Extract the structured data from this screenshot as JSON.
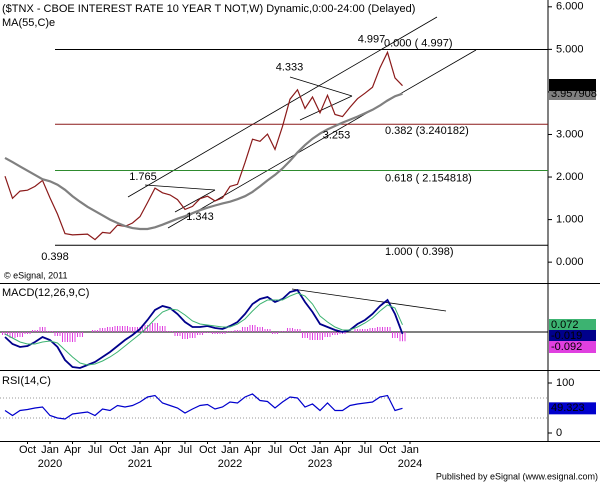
{
  "chart_data": [
    {
      "type": "line",
      "title": "($TNX - CBOE INTEREST RATE 10 YEAR T NOT,W) Dynamic,0:00-24:00 (Delayed)",
      "copyright": "© eSignal, 2011",
      "x": [
        "2019-07",
        "2019-08",
        "2019-09",
        "2019-10",
        "2019-11",
        "2019-12",
        "2020-01",
        "2020-02",
        "2020-03",
        "2020-04",
        "2020-05",
        "2020-06",
        "2020-07",
        "2020-08",
        "2020-09",
        "2020-10",
        "2020-11",
        "2020-12",
        "2021-01",
        "2021-02",
        "2021-03",
        "2021-04",
        "2021-05",
        "2021-06",
        "2021-07",
        "2021-08",
        "2021-09",
        "2021-10",
        "2021-11",
        "2021-12",
        "2022-01",
        "2022-02",
        "2022-03",
        "2022-04",
        "2022-05",
        "2022-06",
        "2022-07",
        "2022-08",
        "2022-09",
        "2022-10",
        "2022-11",
        "2022-12",
        "2023-01",
        "2023-02",
        "2023-03",
        "2023-04",
        "2023-05",
        "2023-06",
        "2023-07",
        "2023-08",
        "2023-09",
        "2023-10",
        "2023-11",
        "2023-12"
      ],
      "series": [
        {
          "color": "#8b1a1a",
          "values": [
            2.02,
            1.5,
            1.67,
            1.69,
            1.78,
            1.92,
            1.51,
            1.13,
            0.67,
            0.64,
            0.65,
            0.66,
            0.53,
            0.7,
            0.68,
            0.87,
            0.84,
            0.92,
            1.07,
            1.4,
            1.74,
            1.63,
            1.58,
            1.47,
            1.24,
            1.31,
            1.49,
            1.55,
            1.44,
            1.51,
            1.78,
            1.83,
            2.34,
            2.89,
            2.84,
            3.01,
            2.65,
            3.19,
            3.83,
            4.05,
            3.61,
            3.88,
            3.51,
            3.92,
            3.47,
            3.42,
            3.64,
            3.84,
            3.97,
            4.11,
            4.57,
            4.93,
            4.33,
            4.146
          ]
        },
        {
          "name": "MA(55,C)e",
          "color": "#808080",
          "values": [
            2.45,
            2.35,
            2.25,
            2.15,
            2.05,
            1.95,
            1.9,
            1.82,
            1.7,
            1.55,
            1.42,
            1.3,
            1.2,
            1.1,
            1.0,
            0.92,
            0.85,
            0.8,
            0.78,
            0.78,
            0.82,
            0.88,
            0.95,
            1.02,
            1.08,
            1.15,
            1.22,
            1.28,
            1.33,
            1.38,
            1.42,
            1.48,
            1.55,
            1.65,
            1.78,
            1.92,
            2.05,
            2.2,
            2.38,
            2.58,
            2.75,
            2.9,
            3.02,
            3.12,
            3.2,
            3.28,
            3.35,
            3.42,
            3.5,
            3.58,
            3.68,
            3.8,
            3.9,
            3.957908
          ]
        }
      ],
      "ylim": [
        -0.49,
        6.16
      ],
      "yticks": [
        {
          "value": 6,
          "label": "6.000"
        },
        {
          "value": 5,
          "label": "5.000"
        },
        {
          "value": 4,
          "label": "4.000"
        },
        {
          "value": 3,
          "label": "3.000"
        },
        {
          "value": 2,
          "label": "2.000"
        },
        {
          "value": 1,
          "label": "1.000"
        },
        {
          "value": 0,
          "label": "0.000"
        }
      ],
      "fib": [
        {
          "label": "0.000 ( 4.997)",
          "value": 4.997,
          "color": "#000000"
        },
        {
          "label": "0.382 (3.240182)",
          "value": 3.240182,
          "color": "#8b1a1a"
        },
        {
          "label": "0.618 ( 2.154818)",
          "value": 2.154818,
          "color": "#2e8b2e"
        },
        {
          "label": "1.000 ( 0.398)",
          "value": 0.398,
          "color": "#000000"
        }
      ],
      "annotations": [
        {
          "x": "2020-03",
          "value": 0.398
        },
        {
          "x": "2021-03",
          "value": 1.765
        },
        {
          "x": "2021-09",
          "value": 1.343
        },
        {
          "x": "2022-10",
          "value": 4.333
        },
        {
          "x": "2023-04",
          "value": 3.253
        },
        {
          "x": "2023-10",
          "value": 4.997
        }
      ]
    },
    {
      "type": "macd",
      "title": "MACD(12,26,9,C)",
      "series": [
        {
          "color": "#00008b",
          "values": [
            -0.05,
            -0.12,
            -0.15,
            -0.14,
            -0.1,
            -0.05,
            -0.08,
            -0.15,
            -0.28,
            -0.35,
            -0.36,
            -0.33,
            -0.3,
            -0.25,
            -0.2,
            -0.14,
            -0.08,
            -0.03,
            0.03,
            0.12,
            0.22,
            0.26,
            0.24,
            0.18,
            0.1,
            0.05,
            0.05,
            0.06,
            0.04,
            0.03,
            0.06,
            0.1,
            0.18,
            0.28,
            0.33,
            0.35,
            0.3,
            0.33,
            0.4,
            0.42,
            0.3,
            0.2,
            0.08,
            0.05,
            0.02,
            0.0,
            0.02,
            0.08,
            0.12,
            0.18,
            0.26,
            0.32,
            0.18,
            -0.019
          ]
        },
        {
          "color": "#3cb371",
          "values": [
            -0.02,
            -0.06,
            -0.1,
            -0.12,
            -0.12,
            -0.1,
            -0.09,
            -0.11,
            -0.18,
            -0.25,
            -0.31,
            -0.33,
            -0.32,
            -0.29,
            -0.25,
            -0.2,
            -0.14,
            -0.08,
            -0.02,
            0.05,
            0.13,
            0.2,
            0.23,
            0.22,
            0.17,
            0.11,
            0.08,
            0.07,
            0.06,
            0.05,
            0.05,
            0.08,
            0.13,
            0.21,
            0.28,
            0.32,
            0.32,
            0.32,
            0.36,
            0.39,
            0.36,
            0.28,
            0.16,
            0.1,
            0.05,
            0.02,
            0.02,
            0.05,
            0.09,
            0.14,
            0.21,
            0.27,
            0.24,
            0.072
          ]
        },
        {
          "kind": "bar",
          "color": "#e040e0",
          "values": [
            -0.03,
            -0.06,
            -0.05,
            -0.02,
            0.02,
            0.05,
            0.01,
            -0.04,
            -0.1,
            -0.1,
            -0.05,
            0.0,
            0.02,
            0.04,
            0.05,
            0.06,
            0.06,
            0.05,
            0.05,
            0.07,
            0.09,
            0.06,
            0.01,
            -0.04,
            -0.07,
            -0.06,
            -0.03,
            -0.01,
            -0.02,
            -0.02,
            0.01,
            0.02,
            0.05,
            0.07,
            0.05,
            0.03,
            -0.02,
            0.01,
            0.04,
            0.03,
            -0.06,
            -0.08,
            -0.08,
            -0.05,
            -0.03,
            -0.02,
            0.0,
            0.03,
            0.03,
            0.04,
            0.05,
            0.05,
            -0.06,
            -0.092
          ]
        }
      ],
      "ylim": [
        -0.36,
        0.46
      ]
    },
    {
      "type": "line",
      "title": "RSI(14,C)",
      "series": [
        {
          "color": "#0000cd",
          "values": [
            45,
            35,
            45,
            47,
            50,
            52,
            35,
            30,
            28,
            38,
            40,
            42,
            35,
            48,
            45,
            55,
            52,
            55,
            62,
            72,
            75,
            60,
            55,
            50,
            40,
            48,
            55,
            57,
            48,
            52,
            62,
            60,
            72,
            78,
            65,
            63,
            50,
            62,
            72,
            70,
            52,
            58,
            45,
            60,
            45,
            45,
            55,
            58,
            60,
            62,
            72,
            75,
            45,
            49.323
          ]
        }
      ],
      "ylim": [
        -14,
        122
      ],
      "yticks": [
        100,
        0
      ],
      "levels": [
        70,
        30
      ],
      "xticks": [
        {
          "value": "2019-10",
          "label": "Oct"
        },
        {
          "value": "2020-01",
          "label": "Jan"
        },
        {
          "value": "2020-04",
          "label": "Apr"
        },
        {
          "value": "2020-07",
          "label": "Jul"
        },
        {
          "value": "2020-10",
          "label": "Oct"
        },
        {
          "value": "2021-01",
          "label": "Jan"
        },
        {
          "value": "2021-04",
          "label": "Apr"
        },
        {
          "value": "2021-07",
          "label": "Jul"
        },
        {
          "value": "2021-10",
          "label": "Oct"
        },
        {
          "value": "2022-01",
          "label": "Jan"
        },
        {
          "value": "2022-04",
          "label": "Apr"
        },
        {
          "value": "2022-07",
          "label": "Jul"
        },
        {
          "value": "2022-10",
          "label": "Oct"
        },
        {
          "value": "2023-01",
          "label": "Jan"
        },
        {
          "value": "2023-04",
          "label": "Apr"
        },
        {
          "value": "2023-07",
          "label": "Jul"
        },
        {
          "value": "2023-10",
          "label": "Oct"
        },
        {
          "value": "2024-01",
          "label": "Jan"
        }
      ],
      "year_labels": [
        {
          "value": "2020-01",
          "label": "2020"
        },
        {
          "value": "2021-01",
          "label": "2021"
        },
        {
          "value": "2022-01",
          "label": "2022"
        },
        {
          "value": "2023-01",
          "label": "2023"
        },
        {
          "value": "2024-01",
          "label": "2024"
        }
      ],
      "footer": "Published by eSignal (www.esignal.com)"
    }
  ]
}
